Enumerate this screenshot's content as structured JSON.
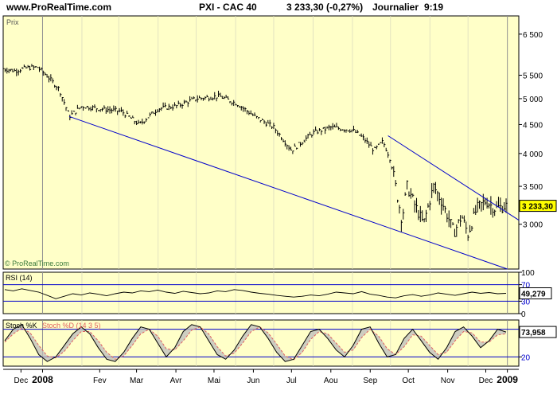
{
  "header": {
    "site": "www.ProRealTime.com",
    "instrument": "PXI - CAC 40",
    "quote": "3 233,30 (-0,27%)",
    "period": "Journalier",
    "time": "9:19"
  },
  "colors": {
    "panel_bg": "#ffffc8",
    "border": "#000000",
    "trendline": "#0000cc",
    "price_bars": "#000000",
    "highlight_label": "#ffff00",
    "stoch_d": "#e06060",
    "stoch_fill": "#bebebe"
  },
  "chart_data": [
    {
      "type": "bar",
      "panel": "price",
      "title": "Prix",
      "watermark": "© ProRealTime.com",
      "y_ticks": [
        6500,
        5500,
        5000,
        4500,
        4000,
        3500,
        3000
      ],
      "y_tick_labels": [
        "6 500",
        "5 500",
        "5 000",
        "4 500",
        "4 000",
        "3 500",
        "3 000"
      ],
      "y_scale": "log",
      "y_range": [
        2500,
        7000
      ],
      "last_value_label": "3 233,30",
      "x_labels": [
        "Dec",
        "2008",
        "Fev",
        "Mar",
        "Avr",
        "Mai",
        "Jun",
        "Jul",
        "Aou",
        "Sep",
        "Oct",
        "Nov",
        "Dec",
        "2009"
      ],
      "x_range": [
        "2007-12-01",
        "2009-01-10"
      ],
      "price_anchors": [
        {
          "date": "2007-12-01",
          "value": 5650
        },
        {
          "date": "2007-12-10",
          "value": 5600
        },
        {
          "date": "2007-12-20",
          "value": 5670
        },
        {
          "date": "2007-12-28",
          "value": 5680
        },
        {
          "date": "2008-01-04",
          "value": 5500
        },
        {
          "date": "2008-01-14",
          "value": 5200
        },
        {
          "date": "2008-01-22",
          "value": 4650
        },
        {
          "date": "2008-02-01",
          "value": 4850
        },
        {
          "date": "2008-02-15",
          "value": 4800
        },
        {
          "date": "2008-03-03",
          "value": 4750
        },
        {
          "date": "2008-03-17",
          "value": 4500
        },
        {
          "date": "2008-04-01",
          "value": 4800
        },
        {
          "date": "2008-04-15",
          "value": 4850
        },
        {
          "date": "2008-05-01",
          "value": 5000
        },
        {
          "date": "2008-05-19",
          "value": 5050
        },
        {
          "date": "2008-06-02",
          "value": 4900
        },
        {
          "date": "2008-06-16",
          "value": 4650
        },
        {
          "date": "2008-07-01",
          "value": 4450
        },
        {
          "date": "2008-07-15",
          "value": 4050
        },
        {
          "date": "2008-08-01",
          "value": 4350
        },
        {
          "date": "2008-08-15",
          "value": 4450
        },
        {
          "date": "2008-09-01",
          "value": 4400
        },
        {
          "date": "2008-09-10",
          "value": 4250
        },
        {
          "date": "2008-09-18",
          "value": 4050
        },
        {
          "date": "2008-09-25",
          "value": 4200
        },
        {
          "date": "2008-10-01",
          "value": 3900
        },
        {
          "date": "2008-10-06",
          "value": 3400
        },
        {
          "date": "2008-10-10",
          "value": 3050
        },
        {
          "date": "2008-10-14",
          "value": 3500
        },
        {
          "date": "2008-10-20",
          "value": 3250
        },
        {
          "date": "2008-10-27",
          "value": 3000
        },
        {
          "date": "2008-11-04",
          "value": 3500
        },
        {
          "date": "2008-11-10",
          "value": 3300
        },
        {
          "date": "2008-11-20",
          "value": 2900
        },
        {
          "date": "2008-11-26",
          "value": 3100
        },
        {
          "date": "2008-12-01",
          "value": 2880
        },
        {
          "date": "2008-12-08",
          "value": 3200
        },
        {
          "date": "2008-12-15",
          "value": 3300
        },
        {
          "date": "2008-12-22",
          "value": 3200
        },
        {
          "date": "2008-12-31",
          "value": 3233
        }
      ],
      "trendlines": [
        {
          "from": {
            "date": "2008-01-22",
            "value": 4650
          },
          "to": {
            "date": "2009-01-01",
            "value": 2500
          }
        },
        {
          "from": {
            "date": "2008-09-29",
            "value": 4300
          },
          "to": {
            "date": "2009-01-10",
            "value": 3050
          }
        }
      ]
    },
    {
      "type": "line",
      "panel": "rsi",
      "title": "RSI (14)",
      "y_range": [
        0,
        100
      ],
      "y_ticks": [
        100,
        70,
        30,
        0
      ],
      "y_tick_labels": [
        "100",
        "70",
        "30",
        "0"
      ],
      "levels": [
        70,
        30
      ],
      "last_value_label": "49,279",
      "series": [
        {
          "values": [
            58,
            55,
            60,
            56,
            52,
            44,
            36,
            42,
            48,
            45,
            50,
            47,
            43,
            48,
            52,
            50,
            55,
            53,
            57,
            52,
            49,
            54,
            51,
            48,
            50,
            55,
            53,
            58,
            56,
            52,
            49,
            47,
            44,
            42,
            40,
            42,
            45,
            43,
            47,
            52,
            50,
            48,
            53,
            47,
            44,
            40,
            38,
            43,
            46,
            42,
            45,
            50,
            47,
            44,
            48,
            52,
            49,
            51,
            48,
            49
          ]
        }
      ]
    },
    {
      "type": "line",
      "panel": "stoch",
      "title": "Stoch %K",
      "legend": [
        "Stoch %K",
        "Stoch %D (14 3 5)"
      ],
      "y_range": [
        0,
        100
      ],
      "y_ticks": [
        80,
        20
      ],
      "y_tick_labels": [
        "",
        "20"
      ],
      "levels": [
        80,
        20
      ],
      "last_value_label": "73,958",
      "series": [
        {
          "name": "Stoch %K",
          "values": [
            55,
            80,
            90,
            60,
            25,
            10,
            20,
            45,
            70,
            85,
            70,
            40,
            15,
            10,
            30,
            60,
            85,
            80,
            50,
            20,
            40,
            75,
            90,
            85,
            55,
            25,
            15,
            35,
            65,
            90,
            85,
            60,
            30,
            10,
            15,
            45,
            75,
            80,
            60,
            35,
            20,
            45,
            80,
            85,
            50,
            20,
            25,
            60,
            80,
            55,
            30,
            15,
            40,
            75,
            85,
            65,
            40,
            55,
            80,
            74
          ]
        },
        {
          "name": "Stoch %D (14 3 5)",
          "values": [
            52,
            70,
            82,
            72,
            45,
            22,
            18,
            32,
            55,
            75,
            75,
            55,
            30,
            15,
            22,
            45,
            70,
            80,
            65,
            38,
            35,
            55,
            78,
            85,
            70,
            42,
            22,
            28,
            50,
            75,
            85,
            72,
            48,
            22,
            14,
            30,
            58,
            75,
            70,
            50,
            30,
            35,
            62,
            80,
            65,
            38,
            25,
            42,
            68,
            65,
            45,
            25,
            30,
            55,
            75,
            72,
            52,
            52,
            68,
            70
          ]
        }
      ]
    }
  ]
}
